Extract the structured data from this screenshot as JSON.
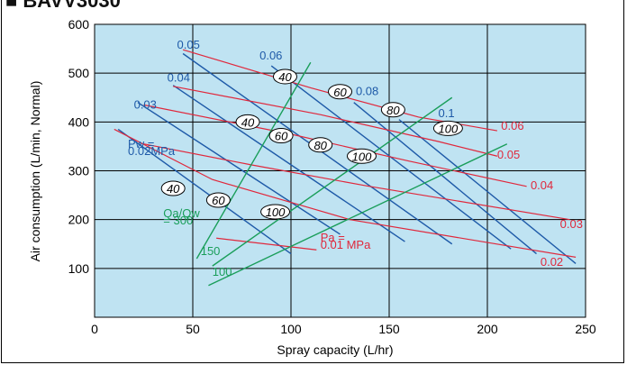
{
  "header": {
    "text": "■ BAVV3030"
  },
  "colors": {
    "plot_bg": "#bfe3f2",
    "water": "#1e5aa8",
    "air": "#e0283c",
    "ratio": "#1a9e5a",
    "grid": "#000000"
  },
  "chart_data": {
    "type": "line",
    "xlabel": "Spray capacity (L/hr)",
    "ylabel": "Air consumption (L/min, Normal)",
    "xlim": [
      0,
      250
    ],
    "ylim": [
      0,
      600
    ],
    "xticks": [
      "0",
      "50",
      "100",
      "150",
      "200",
      "250"
    ],
    "yticks": [
      "100",
      "200",
      "300",
      "400",
      "500",
      "600"
    ],
    "grid": true,
    "water_pressure_lines": [
      {
        "label": "Pw =",
        "label2": "0.02MPa",
        "points": [
          [
            12,
            385
          ],
          [
            100,
            130
          ]
        ]
      },
      {
        "label": "0.03",
        "points": [
          [
            22,
            440
          ],
          [
            125,
            170
          ]
        ]
      },
      {
        "label": "0.04",
        "points": [
          [
            40,
            475
          ],
          [
            158,
            155
          ]
        ]
      },
      {
        "label": "0.05",
        "points": [
          [
            45,
            540
          ],
          [
            182,
            150
          ]
        ]
      },
      {
        "label": "0.06",
        "points": [
          [
            90,
            515
          ],
          [
            212,
            140
          ]
        ]
      },
      {
        "label": "0.08",
        "points": [
          [
            132,
            440
          ],
          [
            225,
            130
          ]
        ]
      },
      {
        "label": "0.1",
        "points": [
          [
            155,
            405
          ],
          [
            245,
            110
          ]
        ]
      }
    ],
    "air_pressure_lines": [
      {
        "label": "Pa =",
        "label2": "0.01 MPa",
        "points": [
          [
            62,
            162
          ],
          [
            113,
            138
          ]
        ]
      },
      {
        "label": "0.02",
        "points": [
          [
            10,
            385
          ],
          [
            60,
            282
          ],
          [
            130,
            200
          ],
          [
            245,
            123
          ]
        ]
      },
      {
        "label": "0.03",
        "points": [
          [
            25,
            355
          ],
          [
            80,
            312
          ],
          [
            140,
            268
          ],
          [
            242,
            200
          ]
        ]
      },
      {
        "label": "0.04",
        "points": [
          [
            25,
            435
          ],
          [
            100,
            375
          ],
          [
            160,
            320
          ],
          [
            220,
            268
          ]
        ]
      },
      {
        "label": "0.05",
        "points": [
          [
            40,
            473
          ],
          [
            115,
            415
          ],
          [
            175,
            360
          ],
          [
            205,
            330
          ]
        ]
      },
      {
        "label": "0.06",
        "points": [
          [
            45,
            548
          ],
          [
            110,
            470
          ],
          [
            165,
            410
          ],
          [
            205,
            382
          ]
        ]
      }
    ],
    "ratio_lines": [
      {
        "label": "Qa/Qw",
        "label2": "= 300",
        "points": [
          [
            52,
            120
          ],
          [
            110,
            522
          ]
        ]
      },
      {
        "label": "150",
        "points": [
          [
            60,
            105
          ],
          [
            182,
            450
          ]
        ]
      },
      {
        "label": "100",
        "points": [
          [
            58,
            65
          ],
          [
            210,
            355
          ]
        ]
      }
    ],
    "ovals": [
      "40",
      "60",
      "80",
      "100",
      "40",
      "60",
      "80",
      "100",
      "40",
      "60",
      "100"
    ]
  }
}
